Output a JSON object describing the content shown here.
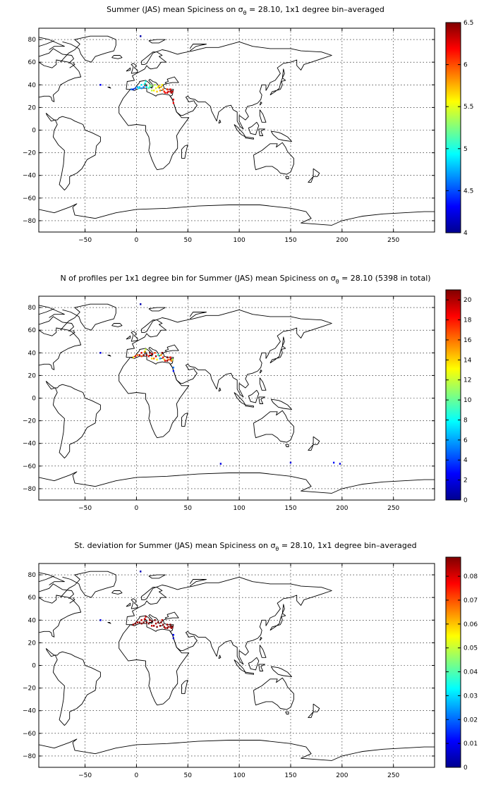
{
  "chart_data": [
    {
      "type": "heatmap",
      "title": "Summer (JAS) mean Spiciness on σθ = 28.10, 1x1 degree bin–averaged",
      "title_parts": {
        "pre": "Summer (JAS) mean Spiciness on ",
        "sym": "σ",
        "sub": "θ",
        "post": " = 28.10, 1x1 degree bin–averaged"
      },
      "xlim": [
        -95,
        290
      ],
      "ylim": [
        -90,
        90
      ],
      "xticks": [
        -50,
        0,
        50,
        100,
        150,
        200,
        250
      ],
      "xtick_labels": [
        "−50",
        "0",
        "50",
        "100",
        "150",
        "200",
        "250"
      ],
      "yticks": [
        80,
        60,
        40,
        20,
        0,
        -20,
        -40,
        -60,
        -80
      ],
      "ytick_labels": [
        "80",
        "60",
        "40",
        "20",
        "0",
        "−20",
        "−40",
        "−60",
        "−80"
      ],
      "grid": true,
      "colorbar": {
        "min": 4,
        "max": 6.5,
        "ticks": [
          4,
          4.5,
          5,
          5.5,
          6,
          6.5
        ],
        "tick_labels": [
          "4",
          "4.5",
          "5",
          "5.5",
          "6",
          "6.5"
        ],
        "colormap": "jet"
      },
      "points": [
        [
          -5,
          36,
          4.6
        ],
        [
          -3,
          36,
          4.4
        ],
        [
          -1,
          37,
          4.5
        ],
        [
          1,
          38,
          4.7
        ],
        [
          3,
          38,
          4.8
        ],
        [
          5,
          40,
          4.9
        ],
        [
          5,
          37,
          4.7
        ],
        [
          7,
          38,
          4.6
        ],
        [
          8,
          41,
          5.0
        ],
        [
          9,
          43,
          5.0
        ],
        [
          10,
          38,
          4.9
        ],
        [
          12,
          37,
          5.1
        ],
        [
          13,
          40,
          5.2
        ],
        [
          15,
          39,
          5.3
        ],
        [
          15,
          35,
          5.4
        ],
        [
          17,
          35,
          5.6
        ],
        [
          18,
          40,
          5.4
        ],
        [
          19,
          37,
          5.5
        ],
        [
          20,
          34,
          5.7
        ],
        [
          21,
          38,
          5.6
        ],
        [
          23,
          35,
          5.8
        ],
        [
          24,
          38,
          5.7
        ],
        [
          25,
          40,
          5.6
        ],
        [
          26,
          36,
          5.9
        ],
        [
          27,
          34,
          6.1
        ],
        [
          28,
          33,
          6.2
        ],
        [
          30,
          33,
          6.3
        ],
        [
          31,
          34,
          6.3
        ],
        [
          33,
          34,
          6.4
        ],
        [
          34,
          33,
          6.4
        ],
        [
          35,
          34,
          6.3
        ],
        [
          33,
          36,
          6.2
        ],
        [
          30,
          36,
          6.1
        ],
        [
          36,
          27,
          6.3
        ],
        [
          36,
          24,
          6.2
        ],
        [
          2,
          37,
          4.9
        ],
        [
          13,
          38,
          5.1
        ],
        [
          22,
          39,
          5.7
        ],
        [
          4,
          83,
          4.1
        ],
        [
          -35,
          40,
          4.3
        ]
      ]
    },
    {
      "type": "heatmap",
      "title": "N of profiles per 1x1 degree bin for Summer (JAS) mean Spiciness on σθ = 28.10 (5398 in total)",
      "title_parts": {
        "pre": "N of profiles per 1x1 degree bin for Summer (JAS) mean Spiciness on ",
        "sym": "σ",
        "sub": "θ",
        "post": " = 28.10 (5398 in total)"
      },
      "xlim": [
        -95,
        290
      ],
      "ylim": [
        -90,
        90
      ],
      "xticks": [
        -50,
        0,
        50,
        100,
        150,
        200,
        250
      ],
      "xtick_labels": [
        "−50",
        "0",
        "50",
        "100",
        "150",
        "200",
        "250"
      ],
      "yticks": [
        80,
        60,
        40,
        20,
        0,
        -20,
        -40,
        -60,
        -80
      ],
      "ytick_labels": [
        "80",
        "60",
        "40",
        "20",
        "0",
        "−20",
        "−40",
        "−60",
        "−80"
      ],
      "grid": true,
      "colorbar": {
        "min": 0,
        "max": 21,
        "ticks": [
          0,
          2,
          4,
          6,
          8,
          10,
          12,
          14,
          16,
          18,
          20
        ],
        "tick_labels": [
          "0",
          "2",
          "4",
          "6",
          "8",
          "10",
          "12",
          "14",
          "16",
          "18",
          "20"
        ],
        "colormap": "jet"
      },
      "points": [
        [
          -3,
          36,
          14
        ],
        [
          -1,
          37,
          18
        ],
        [
          1,
          38,
          16
        ],
        [
          3,
          38,
          20
        ],
        [
          5,
          40,
          19
        ],
        [
          5,
          37,
          17
        ],
        [
          7,
          38,
          21
        ],
        [
          8,
          41,
          15
        ],
        [
          9,
          43,
          12
        ],
        [
          10,
          38,
          20
        ],
        [
          12,
          37,
          18
        ],
        [
          13,
          40,
          21
        ],
        [
          15,
          39,
          19
        ],
        [
          15,
          35,
          14
        ],
        [
          17,
          35,
          16
        ],
        [
          18,
          40,
          17
        ],
        [
          19,
          37,
          20
        ],
        [
          20,
          34,
          13
        ],
        [
          21,
          38,
          9
        ],
        [
          23,
          35,
          6
        ],
        [
          24,
          38,
          15
        ],
        [
          25,
          40,
          21
        ],
        [
          26,
          36,
          18
        ],
        [
          27,
          34,
          14
        ],
        [
          28,
          33,
          19
        ],
        [
          30,
          33,
          21
        ],
        [
          31,
          34,
          17
        ],
        [
          33,
          34,
          20
        ],
        [
          34,
          33,
          16
        ],
        [
          35,
          34,
          12
        ],
        [
          33,
          36,
          18
        ],
        [
          30,
          36,
          21
        ],
        [
          36,
          27,
          5
        ],
        [
          36,
          24,
          3
        ],
        [
          4,
          83,
          1
        ],
        [
          -35,
          40,
          2
        ],
        [
          82,
          -58,
          2
        ],
        [
          150,
          -57,
          2
        ],
        [
          192,
          -57,
          3
        ],
        [
          198,
          -58,
          2
        ]
      ]
    },
    {
      "type": "heatmap",
      "title": "St. deviation for Summer (JAS) mean Spiciness on σθ = 28.10, 1x1 degree bin–averaged",
      "title_parts": {
        "pre": "St. deviation for Summer (JAS) mean Spiciness on ",
        "sym": "σ",
        "sub": "θ",
        "post": " = 28.10, 1x1 degree bin–averaged"
      },
      "xlim": [
        -95,
        290
      ],
      "ylim": [
        -90,
        90
      ],
      "xticks": [
        -50,
        0,
        50,
        100,
        150,
        200,
        250
      ],
      "xtick_labels": [
        "−50",
        "0",
        "50",
        "100",
        "150",
        "200",
        "250"
      ],
      "yticks": [
        80,
        60,
        40,
        20,
        0,
        -20,
        -40,
        -60,
        -80
      ],
      "ytick_labels": [
        "80",
        "60",
        "40",
        "20",
        "0",
        "−20",
        "−40",
        "−60",
        "−80"
      ],
      "grid": true,
      "colorbar": {
        "min": 0,
        "max": 0.088,
        "ticks": [
          0,
          0.01,
          0.02,
          0.03,
          0.04,
          0.05,
          0.06,
          0.07,
          0.08
        ],
        "tick_labels": [
          "0",
          "0.01",
          "0.02",
          "0.03",
          "0.04",
          "0.05",
          "0.06",
          "0.07",
          "0.08"
        ],
        "colormap": "jet"
      },
      "points": [
        [
          -3,
          36,
          0.085
        ],
        [
          -1,
          37,
          0.088
        ],
        [
          1,
          38,
          0.084
        ],
        [
          3,
          38,
          0.088
        ],
        [
          5,
          40,
          0.082
        ],
        [
          5,
          37,
          0.086
        ],
        [
          7,
          38,
          0.088
        ],
        [
          8,
          41,
          0.08
        ],
        [
          9,
          43,
          0.083
        ],
        [
          10,
          38,
          0.087
        ],
        [
          12,
          37,
          0.088
        ],
        [
          13,
          40,
          0.085
        ],
        [
          15,
          39,
          0.088
        ],
        [
          15,
          35,
          0.081
        ],
        [
          17,
          35,
          0.086
        ],
        [
          18,
          40,
          0.088
        ],
        [
          19,
          37,
          0.084
        ],
        [
          20,
          34,
          0.087
        ],
        [
          21,
          38,
          0.088
        ],
        [
          23,
          35,
          0.085
        ],
        [
          24,
          38,
          0.088
        ],
        [
          25,
          40,
          0.082
        ],
        [
          26,
          36,
          0.087
        ],
        [
          27,
          34,
          0.088
        ],
        [
          28,
          33,
          0.083
        ],
        [
          30,
          33,
          0.088
        ],
        [
          31,
          34,
          0.086
        ],
        [
          33,
          34,
          0.088
        ],
        [
          34,
          33,
          0.084
        ],
        [
          35,
          34,
          0.087
        ],
        [
          33,
          36,
          0.088
        ],
        [
          30,
          36,
          0.085
        ],
        [
          36,
          27,
          0.012
        ],
        [
          36,
          24,
          0.006
        ],
        [
          4,
          83,
          0.005
        ],
        [
          -35,
          40,
          0.008
        ]
      ]
    }
  ]
}
